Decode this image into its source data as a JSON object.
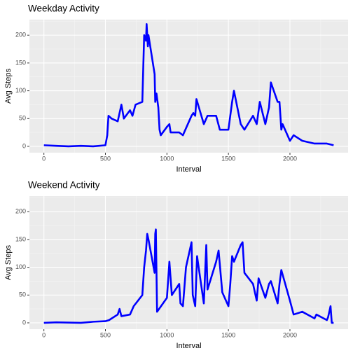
{
  "chart_data": [
    {
      "type": "line",
      "title": "Weekday Activity",
      "x_label": "Interval",
      "y_label": "Avg Steps",
      "x": [
        0,
        100,
        200,
        300,
        400,
        500,
        515,
        525,
        550,
        600,
        630,
        650,
        700,
        720,
        745,
        800,
        815,
        830,
        835,
        845,
        850,
        900,
        905,
        915,
        930,
        940,
        950,
        1000,
        1020,
        1030,
        1100,
        1130,
        1200,
        1215,
        1230,
        1240,
        1300,
        1330,
        1400,
        1430,
        1500,
        1530,
        1545,
        1600,
        1630,
        1700,
        1730,
        1755,
        1800,
        1830,
        1845,
        1900,
        1915,
        1930,
        1940,
        2000,
        2030,
        2100,
        2200,
        2300,
        2355
      ],
      "series": [
        {
          "name": "Weekday",
          "color": "#0000ff",
          "values": [
            2,
            1,
            0,
            1,
            0,
            2,
            20,
            55,
            50,
            45,
            75,
            50,
            65,
            55,
            75,
            80,
            200,
            190,
            220,
            180,
            200,
            130,
            80,
            95,
            70,
            30,
            20,
            35,
            40,
            25,
            25,
            20,
            55,
            60,
            55,
            85,
            40,
            55,
            55,
            30,
            30,
            80,
            100,
            40,
            30,
            55,
            40,
            80,
            40,
            70,
            115,
            80,
            80,
            30,
            40,
            10,
            20,
            10,
            5,
            5,
            2
          ]
        }
      ],
      "xlim": [
        -117.75,
        2472.75
      ],
      "ylim": [
        -11.4,
        228
      ],
      "xticks": [
        0,
        500,
        1000,
        1500,
        2000
      ],
      "yticks": [
        0,
        50,
        100,
        150,
        200
      ],
      "xminorticks": [
        250,
        750,
        1250,
        1750,
        2250
      ],
      "yminorticks": [
        25,
        75,
        125,
        175,
        225
      ],
      "grid": true
    },
    {
      "type": "line",
      "title": "Weekend Activity",
      "x_label": "Interval",
      "y_label": "Avg Steps",
      "x": [
        0,
        100,
        300,
        400,
        500,
        530,
        600,
        615,
        630,
        700,
        730,
        800,
        815,
        830,
        840,
        850,
        900,
        905,
        910,
        920,
        1000,
        1020,
        1040,
        1100,
        1110,
        1130,
        1155,
        1200,
        1210,
        1230,
        1245,
        1300,
        1320,
        1330,
        1400,
        1420,
        1450,
        1500,
        1515,
        1530,
        1545,
        1600,
        1615,
        1630,
        1700,
        1730,
        1745,
        1800,
        1830,
        1845,
        1900,
        1915,
        1930,
        2000,
        2030,
        2100,
        2200,
        2215,
        2300,
        2310,
        2330,
        2340,
        2355
      ],
      "series": [
        {
          "name": "Weekend",
          "color": "#0000ff",
          "values": [
            0,
            1,
            0,
            2,
            3,
            5,
            15,
            25,
            12,
            15,
            30,
            50,
            100,
            130,
            160,
            150,
            90,
            160,
            168,
            20,
            45,
            110,
            50,
            70,
            35,
            30,
            100,
            145,
            50,
            30,
            120,
            35,
            140,
            60,
            110,
            130,
            55,
            30,
            70,
            120,
            110,
            140,
            145,
            90,
            70,
            40,
            80,
            45,
            70,
            75,
            35,
            70,
            95,
            40,
            15,
            20,
            8,
            15,
            5,
            10,
            30,
            0,
            0
          ]
        }
      ],
      "xlim": [
        -117.75,
        2472.75
      ],
      "ylim": [
        -11.4,
        228
      ],
      "xticks": [
        0,
        500,
        1000,
        1500,
        2000
      ],
      "yticks": [
        0,
        50,
        100,
        150,
        200
      ],
      "xminorticks": [
        250,
        750,
        1250,
        1750,
        2250
      ],
      "yminorticks": [
        25,
        75,
        125,
        175,
        225
      ],
      "grid": true
    }
  ]
}
